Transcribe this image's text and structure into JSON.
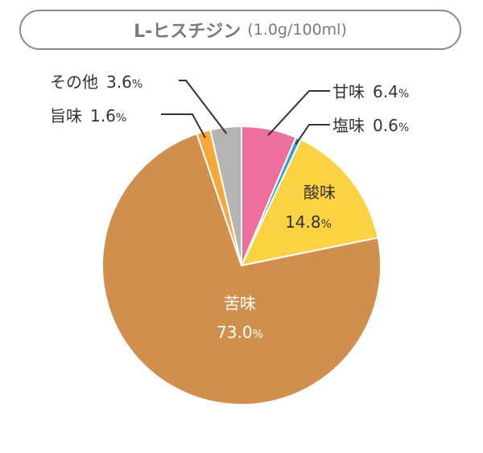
{
  "title": {
    "main": "L-ヒスチジン",
    "sub": "(1.0g/100ml)"
  },
  "chart_data": {
    "type": "pie",
    "start": "12 o'clock, clockwise",
    "slices": [
      {
        "name": "甘味",
        "value": 6.4,
        "value_text": "6.4",
        "unit": "%",
        "color": "#ec6f9c"
      },
      {
        "name": "塩味",
        "value": 0.6,
        "value_text": "0.6",
        "unit": "%",
        "color": "#2aa0dc"
      },
      {
        "name": "酸味",
        "value": 14.8,
        "value_text": "14.8",
        "unit": "%",
        "color": "#fbd342"
      },
      {
        "name": "苦味",
        "value": 73.0,
        "value_text": "73.0",
        "unit": "%",
        "color": "#d08f4c"
      },
      {
        "name": "旨味",
        "value": 1.6,
        "value_text": "1.6",
        "unit": "%",
        "color": "#f4a93a"
      },
      {
        "name": "その他",
        "value": 3.6,
        "value_text": "3.6",
        "unit": "%",
        "color": "#b4b4b4"
      }
    ]
  }
}
